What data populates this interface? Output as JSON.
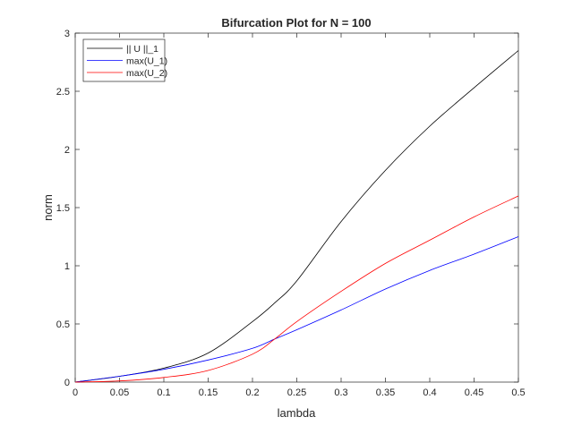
{
  "chart_data": {
    "type": "line",
    "title": "Bifurcation Plot for N = 100",
    "xlabel": "lambda",
    "ylabel": "norm",
    "xlim": [
      0,
      0.5
    ],
    "ylim": [
      0,
      3
    ],
    "xticks": [
      "0",
      "0.05",
      "0.1",
      "0.15",
      "0.2",
      "0.25",
      "0.3",
      "0.35",
      "0.4",
      "0.45",
      "0.5"
    ],
    "yticks": [
      "0",
      "0.5",
      "1",
      "1.5",
      "2",
      "2.5",
      "3"
    ],
    "legend_position": "top-left",
    "grid": false,
    "x": [
      0,
      0.05,
      0.1,
      0.15,
      0.2,
      0.225,
      0.25,
      0.3,
      0.35,
      0.4,
      0.45,
      0.5
    ],
    "series": [
      {
        "name": "|| U ||_1",
        "color": "#000000",
        "values": [
          0,
          0.05,
          0.12,
          0.25,
          0.52,
          0.68,
          0.87,
          1.38,
          1.82,
          2.2,
          2.53,
          2.85
        ]
      },
      {
        "name": "max(U_1)",
        "color": "#0000ff",
        "values": [
          0,
          0.05,
          0.11,
          0.19,
          0.29,
          0.37,
          0.45,
          0.62,
          0.8,
          0.96,
          1.1,
          1.25
        ]
      },
      {
        "name": "max(U_2)",
        "color": "#ff0000",
        "values": [
          0,
          0.01,
          0.04,
          0.1,
          0.24,
          0.37,
          0.52,
          0.78,
          1.02,
          1.22,
          1.42,
          1.6
        ]
      }
    ]
  }
}
